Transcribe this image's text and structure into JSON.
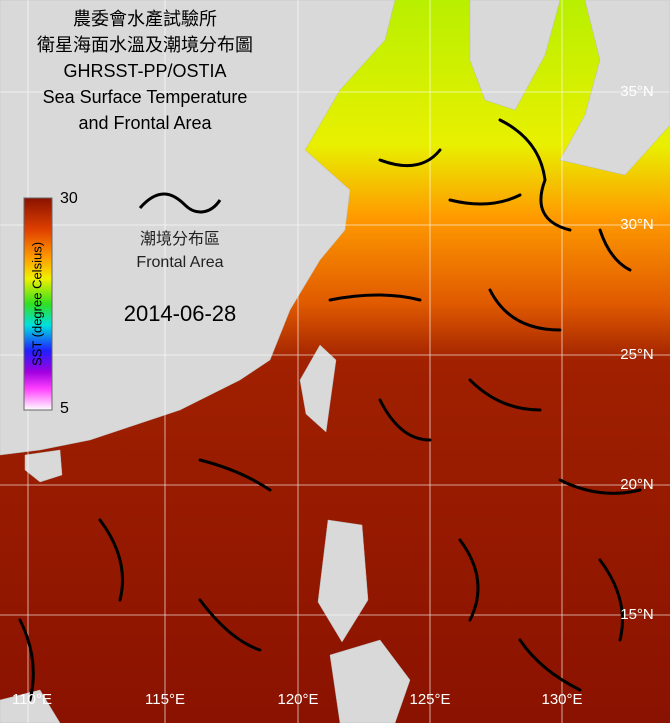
{
  "header": {
    "lines": [
      "農委會水產試驗所",
      "衛星海面水溫及潮境分布圖",
      "GHRSST-PP/OSTIA",
      "Sea Surface Temperature",
      "and Frontal Area"
    ]
  },
  "colorbar": {
    "label": "SST (degree Celsius)",
    "max": "30",
    "min": "5"
  },
  "frontal_legend": {
    "label_zh": "潮境分布區",
    "label_en": "Frontal Area"
  },
  "date": "2014-06-28",
  "lat_labels": [
    "35°N",
    "30°N",
    "25°N",
    "20°N",
    "15°N"
  ],
  "lon_labels": [
    "110°E",
    "115°E",
    "120°E",
    "125°E",
    "130°E"
  ]
}
